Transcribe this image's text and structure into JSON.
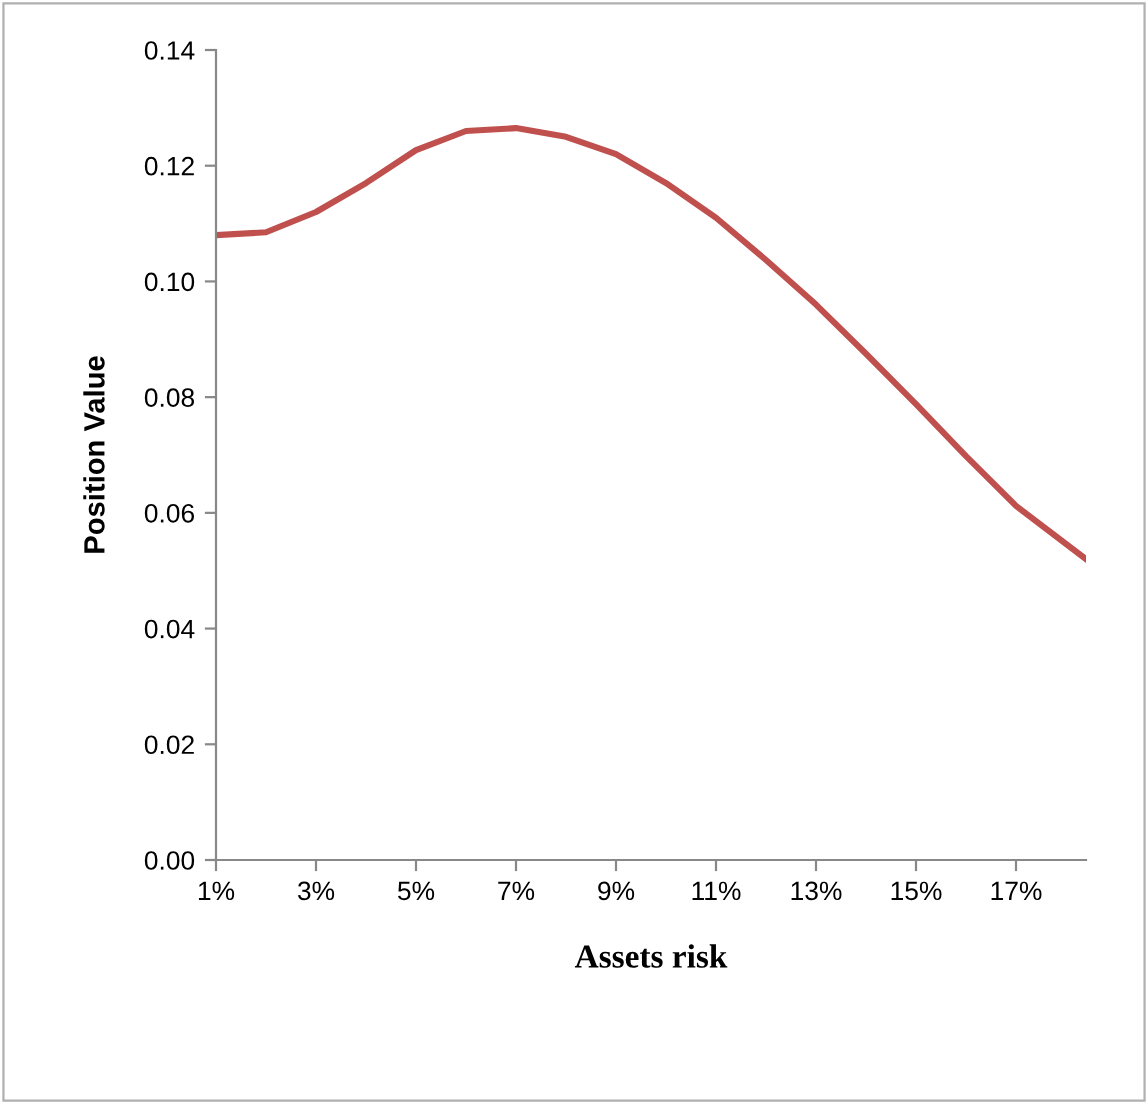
{
  "chart_data": {
    "type": "line",
    "xlabel": "Assets risk",
    "ylabel": "Position Value",
    "x": [
      1,
      2,
      3,
      4,
      5,
      6,
      7,
      8,
      9,
      10,
      11,
      12,
      13,
      14,
      15,
      16,
      17,
      18.4
    ],
    "series": [
      {
        "color": "#c0504d",
        "values": [
          0.108,
          0.1085,
          0.112,
          0.117,
          0.1227,
          0.126,
          0.1265,
          0.125,
          0.122,
          0.117,
          0.111,
          0.1037,
          0.096,
          0.0875,
          0.0788,
          0.0698,
          0.0612,
          0.052
        ]
      }
    ],
    "xlim": [
      1,
      18.4
    ],
    "xticks": [
      {
        "value": 1,
        "label": "1%"
      },
      {
        "value": 3,
        "label": "3%"
      },
      {
        "value": 5,
        "label": "5%"
      },
      {
        "value": 7,
        "label": "7%"
      },
      {
        "value": 9,
        "label": "9%"
      },
      {
        "value": 11,
        "label": "11%"
      },
      {
        "value": 13,
        "label": "13%"
      },
      {
        "value": 15,
        "label": "15%"
      },
      {
        "value": 17,
        "label": "17%"
      }
    ],
    "ylim": [
      0,
      0.14
    ],
    "yticks": [
      {
        "value": 0,
        "label": "0.00"
      },
      {
        "value": 0.02,
        "label": "0.02"
      },
      {
        "value": 0.04,
        "label": "0.04"
      },
      {
        "value": 0.06,
        "label": "0.06"
      },
      {
        "value": 0.08,
        "label": "0.08"
      },
      {
        "value": 0.1,
        "label": "0.10"
      },
      {
        "value": 0.12,
        "label": "0.12"
      },
      {
        "value": 0.14,
        "label": "0.14"
      }
    ],
    "grid": false,
    "legend": false,
    "marker": "none",
    "line_style": "solid"
  }
}
